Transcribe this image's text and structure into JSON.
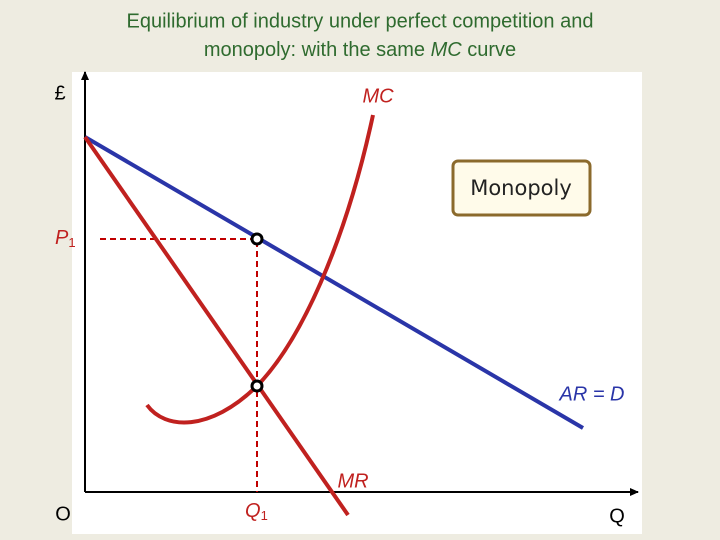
{
  "title": {
    "line1": "Equilibrium of  industry under perfect competition and",
    "line2_start": "monopoly: with the same ",
    "line2_emph": "MC",
    "line2_end": " curve"
  },
  "labels": {
    "y_axis": "£",
    "origin": "O",
    "x_axis": "Q",
    "mc": "MC",
    "mr": "MR",
    "demand": "AR = D",
    "price": {
      "main": "P",
      "sub": "1"
    },
    "quantity": {
      "main": "Q",
      "sub": "1"
    }
  },
  "box": {
    "text": "Monopoly"
  }
}
